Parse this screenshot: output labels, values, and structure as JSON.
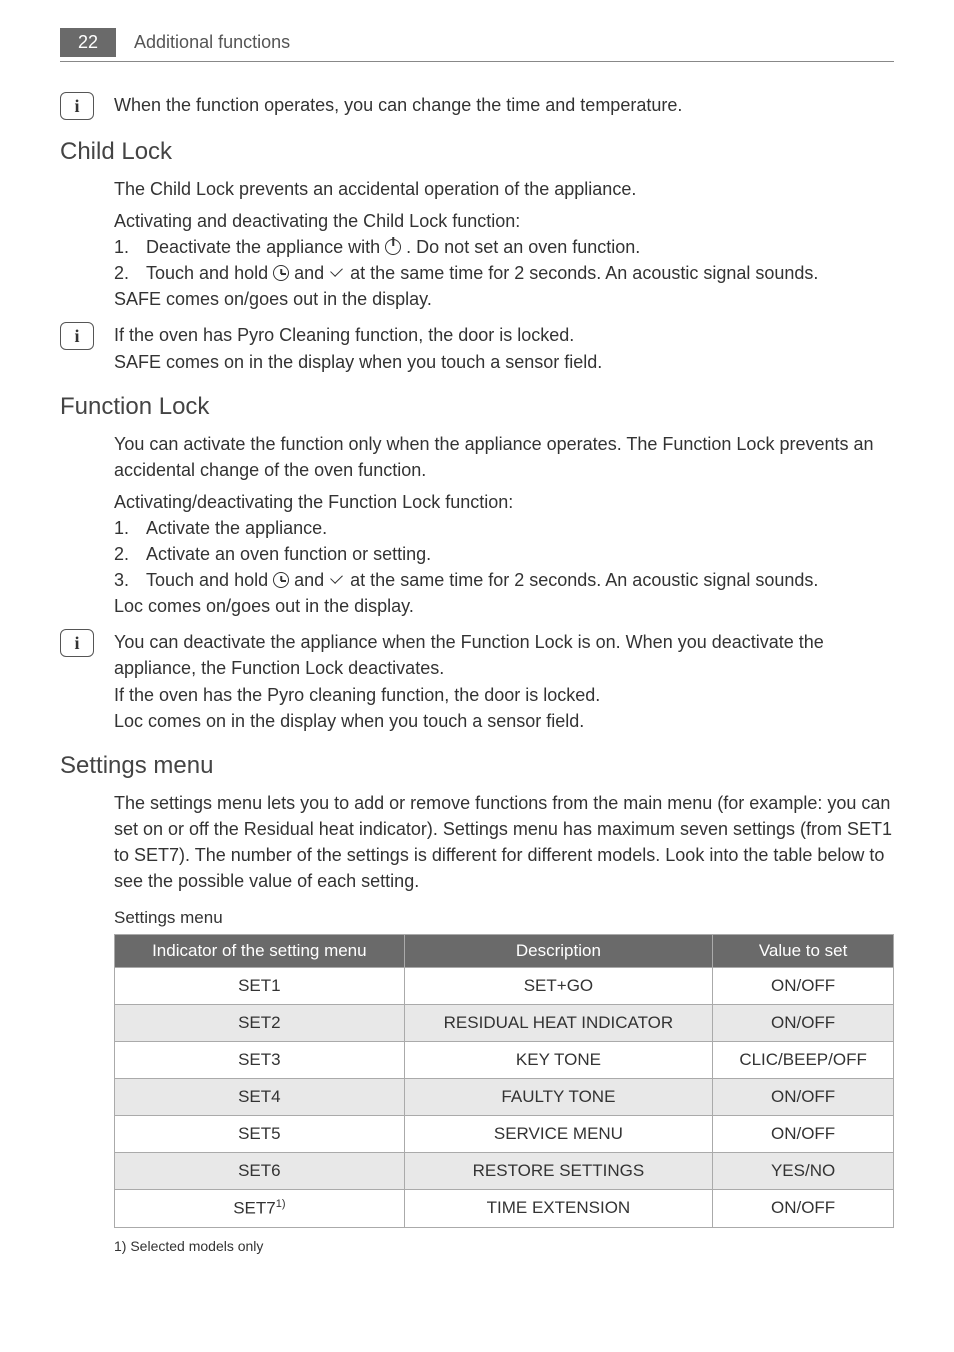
{
  "header": {
    "page_number": "22",
    "section": "Additional functions"
  },
  "info1": {
    "text": "When the function operates, you can change the time and temperature."
  },
  "child_lock": {
    "title": "Child Lock",
    "intro": "The Child Lock prevents an accidental operation of the appliance.",
    "sub_heading": "Activating and deactivating the Child Lock function:",
    "step1_num": "1.",
    "step1_a": "Deactivate the appliance with ",
    "step1_b": " . Do not set an oven function.",
    "step2_num": "2.",
    "step2_a": "Touch and hold ",
    "step2_b": " and ",
    "step2_c": " at the same time for 2 seconds. An acoustic signal sounds.",
    "after": "SAFE comes on/goes out in the display.",
    "info_a": "If the oven has Pyro Cleaning function, the door is locked.",
    "info_b": "SAFE comes on in the display when you touch a sensor field."
  },
  "function_lock": {
    "title": "Function Lock",
    "intro": "You can activate the function only when the appliance operates. The Function Lock prevents an accidental change of the oven function.",
    "sub_heading": "Activating/deactivating the Function Lock function:",
    "step1_num": "1.",
    "step1": "Activate the appliance.",
    "step2_num": "2.",
    "step2": "Activate an oven function or setting.",
    "step3_num": "3.",
    "step3_a": "Touch and hold ",
    "step3_b": " and ",
    "step3_c": " at the same time for 2 seconds. An acoustic signal sounds.",
    "after": "Loc comes on/goes out in the display.",
    "info_a": "You can deactivate the appliance when the Function Lock is on. When you deactivate the appliance, the Function Lock deactivates.",
    "info_b": "If the oven has the Pyro cleaning function, the door is locked.",
    "info_c": "Loc comes on in the display when you touch a sensor field."
  },
  "settings": {
    "title": "Settings menu",
    "intro": "The settings menu lets you to add or remove functions from the main menu (for example: you can set on or off the Residual heat indicator). Settings menu has maximum seven settings (from SET1 to SET7). The number of the settings is different for different models. Look into the table below to see the possible value of each setting.",
    "table_caption": "Settings menu",
    "table": {
      "headers": [
        "Indicator of the setting menu",
        "Description",
        "Value to set"
      ],
      "rows": [
        {
          "c1": "SET1",
          "c2": "SET+GO",
          "c3": "ON/OFF",
          "shade": false
        },
        {
          "c1": "SET2",
          "c2": "RESIDUAL HEAT INDICATOR",
          "c3": "ON/OFF",
          "shade": true
        },
        {
          "c1": "SET3",
          "c2": "KEY TONE",
          "c3": "CLIC/BEEP/OFF",
          "shade": false
        },
        {
          "c1": "SET4",
          "c2": "FAULTY TONE",
          "c3": "ON/OFF",
          "shade": true
        },
        {
          "c1": "SET5",
          "c2": "SERVICE MENU",
          "c3": "ON/OFF",
          "shade": false
        },
        {
          "c1": "SET6",
          "c2": "RESTORE SETTINGS",
          "c3": "YES/NO",
          "shade": true
        },
        {
          "c1": "SET7",
          "c1_sup": "1)",
          "c2": "TIME EXTENSION",
          "c3": "ON/OFF",
          "shade": false
        }
      ]
    },
    "footnote": "1) Selected models only"
  }
}
